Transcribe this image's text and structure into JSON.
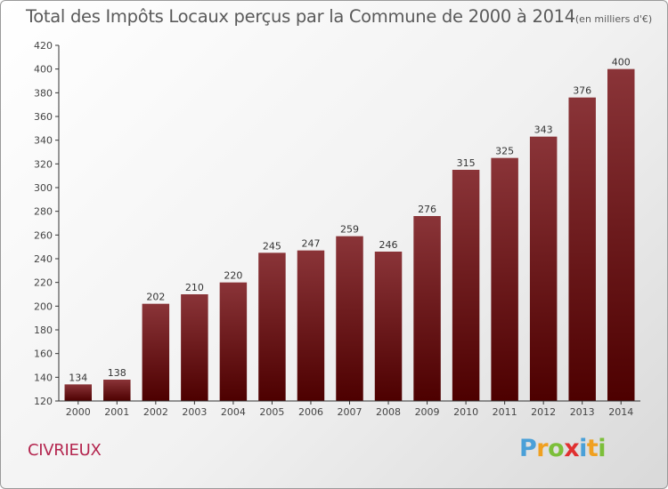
{
  "chart_data": {
    "type": "bar",
    "title": "Total des Impôts Locaux perçus par la Commune de 2000 à 2014",
    "unit_label": "(en milliers d'€)",
    "categories": [
      "2000",
      "2001",
      "2002",
      "2003",
      "2004",
      "2005",
      "2006",
      "2007",
      "2008",
      "2009",
      "2010",
      "2011",
      "2012",
      "2013",
      "2014"
    ],
    "values": [
      134,
      138,
      202,
      210,
      220,
      245,
      247,
      259,
      246,
      276,
      315,
      325,
      343,
      376,
      400
    ],
    "ylim": [
      120,
      420
    ],
    "yticks": [
      120,
      140,
      160,
      180,
      200,
      220,
      240,
      260,
      280,
      300,
      320,
      340,
      360,
      380,
      400,
      420
    ],
    "xlabel": "",
    "ylabel": "",
    "grid": false,
    "bar_color_top": "#8a3438",
    "bar_color_bottom": "#4d0000"
  },
  "commune": "CIVRIEUX",
  "logo": {
    "letters": [
      "P",
      "r",
      "o",
      "x",
      "i",
      "t",
      "i"
    ],
    "colors": [
      "#4aa0d8",
      "#f0a020",
      "#7cbf3a",
      "#e03030",
      "#4aa0d8",
      "#f0a020",
      "#7cbf3a"
    ]
  }
}
